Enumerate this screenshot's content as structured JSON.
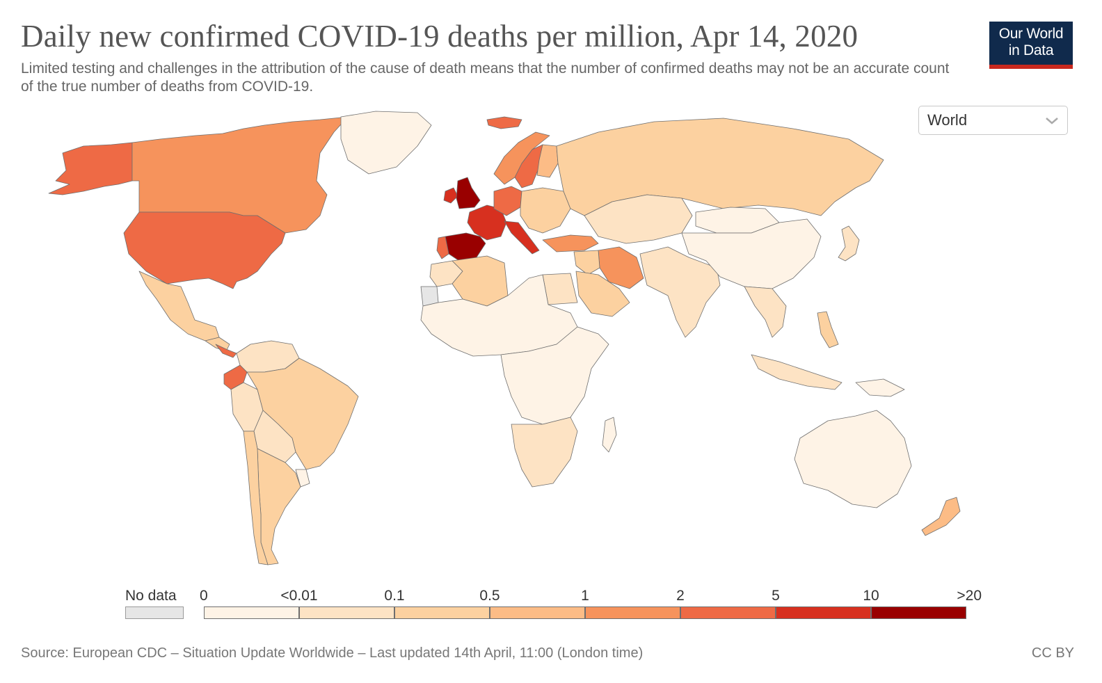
{
  "header": {
    "title": "Daily new confirmed COVID-19 deaths per million, Apr 14, 2020",
    "subtitle": "Limited testing and challenges in the attribution of the cause of death means that the number of confirmed deaths may not be an accurate count of the true number of deaths from COVID-19.",
    "logo_line1": "Our World",
    "logo_line2": "in Data"
  },
  "controls": {
    "region_selected": "World"
  },
  "legend": {
    "no_data_label": "No data",
    "no_data_color": "#e6e6e6",
    "tick_labels": [
      "0",
      "<0.01",
      "0.1",
      "0.5",
      "1",
      "2",
      "5",
      "10",
      ">20"
    ],
    "bin_colors": [
      "#fef3e6",
      "#fde3c4",
      "#fcd1a0",
      "#fcbc86",
      "#f6935c",
      "#ee6a45",
      "#d7301f",
      "#990000"
    ]
  },
  "map_regions": [
    {
      "name": "Canada",
      "bin": 4
    },
    {
      "name": "United States",
      "bin": 5
    },
    {
      "name": "Alaska",
      "bin": 5
    },
    {
      "name": "Greenland",
      "bin": 0
    },
    {
      "name": "Mexico",
      "bin": 2
    },
    {
      "name": "Central America",
      "bin": 2
    },
    {
      "name": "Panama",
      "bin": 5
    },
    {
      "name": "Colombia/Venezuela",
      "bin": 1
    },
    {
      "name": "Ecuador",
      "bin": 5
    },
    {
      "name": "Peru",
      "bin": 1
    },
    {
      "name": "Brazil",
      "bin": 2
    },
    {
      "name": "Bolivia/Paraguay",
      "bin": 1
    },
    {
      "name": "Chile",
      "bin": 2
    },
    {
      "name": "Argentina",
      "bin": 2
    },
    {
      "name": "Uruguay",
      "bin": 0
    },
    {
      "name": "Iceland",
      "bin": 5
    },
    {
      "name": "Norway",
      "bin": 4
    },
    {
      "name": "Sweden",
      "bin": 5
    },
    {
      "name": "Finland",
      "bin": 3
    },
    {
      "name": "United Kingdom",
      "bin": 7
    },
    {
      "name": "Ireland",
      "bin": 6
    },
    {
      "name": "France",
      "bin": 6
    },
    {
      "name": "Spain",
      "bin": 7
    },
    {
      "name": "Portugal",
      "bin": 5
    },
    {
      "name": "Italy",
      "bin": 6
    },
    {
      "name": "Germany",
      "bin": 5
    },
    {
      "name": "Eastern Europe",
      "bin": 2
    },
    {
      "name": "Russia",
      "bin": 2
    },
    {
      "name": "Kazakhstan/Central Asia",
      "bin": 1
    },
    {
      "name": "Turkey",
      "bin": 4
    },
    {
      "name": "Iran",
      "bin": 4
    },
    {
      "name": "Saudi Arabia",
      "bin": 2
    },
    {
      "name": "Iraq/Syria",
      "bin": 2
    },
    {
      "name": "India/Pakistan",
      "bin": 1
    },
    {
      "name": "China",
      "bin": 0
    },
    {
      "name": "Mongolia",
      "bin": 0
    },
    {
      "name": "Japan",
      "bin": 1
    },
    {
      "name": "Southeast Asia",
      "bin": 1
    },
    {
      "name": "Philippines",
      "bin": 2
    },
    {
      "name": "Indonesia",
      "bin": 1
    },
    {
      "name": "Papua New Guinea",
      "bin": 0
    },
    {
      "name": "Australia",
      "bin": 0
    },
    {
      "name": "New Zealand",
      "bin": 3
    },
    {
      "name": "Algeria",
      "bin": 2
    },
    {
      "name": "Morocco",
      "bin": 1
    },
    {
      "name": "Egypt",
      "bin": 1
    },
    {
      "name": "Sahel/West Africa",
      "bin": 0
    },
    {
      "name": "Central & East Africa",
      "bin": 0
    },
    {
      "name": "Southern Africa",
      "bin": 1
    },
    {
      "name": "Madagascar",
      "bin": 0
    },
    {
      "name": "Western Sahara",
      "bin": -1
    }
  ],
  "footer": {
    "source": "Source: European CDC – Situation Update Worldwide – Last updated 14th April, 11:00 (London time)",
    "license": "CC BY"
  }
}
